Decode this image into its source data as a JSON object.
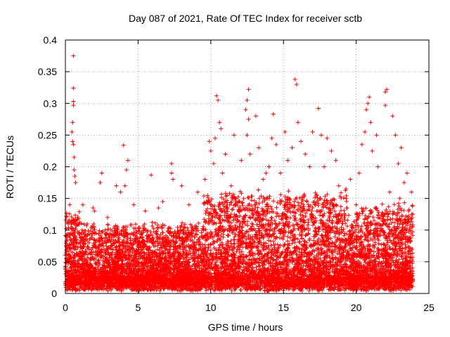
{
  "chart_data": {
    "type": "scatter",
    "title": "Day 087 of 2021, Rate Of TEC Index for receiver sctb",
    "xlabel": "GPS time / hours",
    "ylabel": "ROTI / TECUs",
    "xlim": [
      0,
      25
    ],
    "ylim": [
      0,
      0.4
    ],
    "x_ticks": [
      "0",
      "5",
      "10",
      "15",
      "20",
      "25"
    ],
    "y_ticks": [
      "0",
      "0.05",
      "0.1",
      "0.15",
      "0.2",
      "0.25",
      "0.3",
      "0.35",
      "0.4"
    ],
    "x_tick_values": [
      0,
      5,
      10,
      15,
      20,
      25
    ],
    "y_tick_values": [
      0,
      0.05,
      0.1,
      0.15,
      0.2,
      0.25,
      0.3,
      0.35,
      0.4
    ],
    "grid": true,
    "marker": "+",
    "marker_color": "#ff0000",
    "series": [
      {
        "points": [
          [
            0.55,
            0.375
          ],
          [
            0.55,
            0.324
          ],
          [
            0.55,
            0.303
          ],
          [
            0.55,
            0.297
          ],
          [
            0.5,
            0.27
          ],
          [
            0.45,
            0.255
          ],
          [
            0.5,
            0.24
          ],
          [
            0.55,
            0.235
          ],
          [
            0.6,
            0.215
          ],
          [
            0.6,
            0.195
          ],
          [
            0.65,
            0.185
          ],
          [
            0.7,
            0.175
          ],
          [
            0.3,
            0.14
          ],
          [
            0.2,
            0.11
          ],
          [
            0.1,
            0.09
          ],
          [
            4.0,
            0.234
          ],
          [
            4.3,
            0.21
          ],
          [
            4.2,
            0.195
          ],
          [
            4.1,
            0.17
          ],
          [
            3.8,
            0.16
          ],
          [
            5.9,
            0.187
          ],
          [
            7.3,
            0.205
          ],
          [
            7.3,
            0.19
          ],
          [
            7.4,
            0.18
          ],
          [
            8.0,
            0.17
          ],
          [
            2.5,
            0.19
          ],
          [
            2.4,
            0.175
          ],
          [
            1.9,
            0.135
          ],
          [
            3.5,
            0.17
          ],
          [
            6.7,
            0.145
          ],
          [
            10.4,
            0.312
          ],
          [
            10.5,
            0.305
          ],
          [
            10.6,
            0.27
          ],
          [
            10.7,
            0.26
          ],
          [
            10.3,
            0.245
          ],
          [
            9.9,
            0.24
          ],
          [
            10.0,
            0.225
          ],
          [
            10.2,
            0.205
          ],
          [
            11.0,
            0.22
          ],
          [
            10.8,
            0.19
          ],
          [
            12.6,
            0.322
          ],
          [
            12.5,
            0.305
          ],
          [
            12.4,
            0.29
          ],
          [
            12.6,
            0.275
          ],
          [
            12.5,
            0.25
          ],
          [
            13.1,
            0.28
          ],
          [
            12.7,
            0.22
          ],
          [
            11.6,
            0.25
          ],
          [
            12.1,
            0.21
          ],
          [
            13.3,
            0.23
          ],
          [
            14.3,
            0.283
          ],
          [
            14.2,
            0.245
          ],
          [
            14.5,
            0.235
          ],
          [
            14.0,
            0.2
          ],
          [
            13.8,
            0.19
          ],
          [
            15.8,
            0.338
          ],
          [
            15.9,
            0.33
          ],
          [
            16.0,
            0.27
          ],
          [
            15.1,
            0.255
          ],
          [
            15.6,
            0.23
          ],
          [
            16.2,
            0.24
          ],
          [
            16.5,
            0.22
          ],
          [
            15.3,
            0.21
          ],
          [
            17.0,
            0.255
          ],
          [
            17.4,
            0.292
          ],
          [
            17.6,
            0.25
          ],
          [
            18.0,
            0.245
          ],
          [
            18.3,
            0.225
          ],
          [
            17.8,
            0.2
          ],
          [
            18.6,
            0.21
          ],
          [
            20.9,
            0.31
          ],
          [
            20.8,
            0.3
          ],
          [
            20.7,
            0.29
          ],
          [
            21.0,
            0.27
          ],
          [
            20.6,
            0.255
          ],
          [
            21.4,
            0.25
          ],
          [
            21.1,
            0.225
          ],
          [
            20.4,
            0.235
          ],
          [
            21.5,
            0.2
          ],
          [
            20.2,
            0.19
          ],
          [
            22.1,
            0.322
          ],
          [
            22.0,
            0.318
          ],
          [
            22.0,
            0.297
          ],
          [
            22.5,
            0.28
          ],
          [
            22.7,
            0.25
          ],
          [
            23.1,
            0.23
          ],
          [
            22.9,
            0.205
          ],
          [
            23.5,
            0.19
          ],
          [
            23.3,
            0.175
          ],
          [
            23.8,
            0.16
          ],
          [
            1.2,
            0.14
          ],
          [
            2.0,
            0.13
          ],
          [
            2.9,
            0.12
          ],
          [
            4.7,
            0.14
          ],
          [
            5.5,
            0.13
          ],
          [
            6.4,
            0.135
          ],
          [
            8.5,
            0.14
          ],
          [
            9.1,
            0.16
          ],
          [
            9.6,
            0.18
          ],
          [
            11.4,
            0.17
          ],
          [
            13.6,
            0.18
          ],
          [
            14.8,
            0.19
          ],
          [
            16.8,
            0.2
          ],
          [
            18.8,
            0.17
          ],
          [
            19.3,
            0.165
          ],
          [
            19.6,
            0.18
          ],
          [
            20.0,
            0.14
          ],
          [
            22.3,
            0.16
          ],
          [
            23.0,
            0.15
          ],
          [
            23.6,
            0.13
          ]
        ]
      }
    ]
  }
}
